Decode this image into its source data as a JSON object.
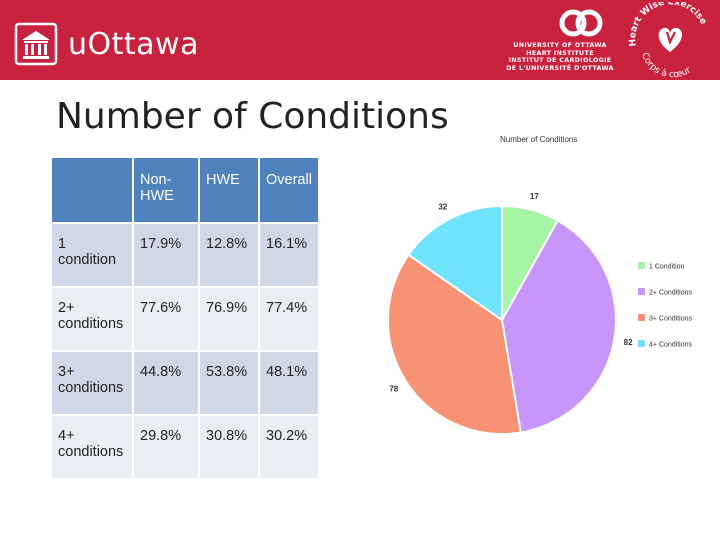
{
  "header": {
    "university_logo_text": "uOttawa",
    "institute_lines": [
      "UNIVERSITY OF OTTAWA",
      "HEART INSTITUTE",
      "INSTITUT DE CARDIOLOGIE",
      "DE L'UNIVERSITÉ D'OTTAWA"
    ],
    "program_logo_top": "Heart Wise Exercise",
    "program_logo_bottom": "Corps à cœur"
  },
  "title": "Number of Conditions",
  "table": {
    "columns": [
      "",
      "Non-HWE",
      "HWE",
      "Overall"
    ],
    "rows": [
      {
        "label": "1 condition",
        "non_hwe": "17.9%",
        "hwe": "12.8%",
        "overall": "16.1%"
      },
      {
        "label": "2+ conditions",
        "non_hwe": "77.6%",
        "hwe": "76.9%",
        "overall": "77.4%"
      },
      {
        "label": "3+ conditions",
        "non_hwe": "44.8%",
        "hwe": "53.8%",
        "overall": "48.1%"
      },
      {
        "label": "4+ conditions",
        "non_hwe": "29.8%",
        "hwe": "30.8%",
        "overall": "30.2%"
      }
    ]
  },
  "chart_data": {
    "type": "pie",
    "title": "Number of Conditions",
    "categories": [
      "1 Condition",
      "2+ Conditions",
      "3+ Conditions",
      "4+ Conditions"
    ],
    "values": [
      17,
      82,
      78,
      32
    ],
    "colors": [
      "#a6f5a6",
      "#c896fa",
      "#f79374",
      "#6ee3fa"
    ],
    "legend": "right"
  }
}
